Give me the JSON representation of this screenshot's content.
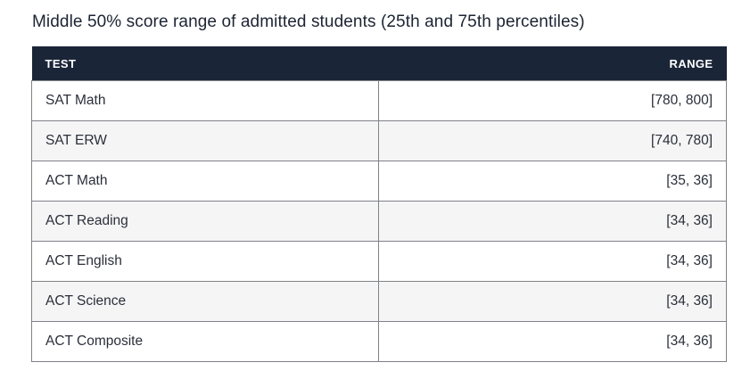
{
  "title": "Middle 50% score range of admitted students (25th and 75th percentiles)",
  "table": {
    "headers": {
      "test": "TEST",
      "range": "RANGE"
    },
    "rows": [
      {
        "test": "SAT Math",
        "range": "[780, 800]"
      },
      {
        "test": "SAT ERW",
        "range": "[740, 780]"
      },
      {
        "test": "ACT Math",
        "range": "[35, 36]"
      },
      {
        "test": "ACT Reading",
        "range": "[34, 36]"
      },
      {
        "test": "ACT English",
        "range": "[34, 36]"
      },
      {
        "test": "ACT Science",
        "range": "[34, 36]"
      },
      {
        "test": "ACT Composite",
        "range": "[34, 36]"
      }
    ]
  },
  "colors": {
    "header_bg": "#1b2538",
    "header_text": "#ffffff",
    "alt_row_bg": "#f5f5f5",
    "border": "#7f8288"
  }
}
